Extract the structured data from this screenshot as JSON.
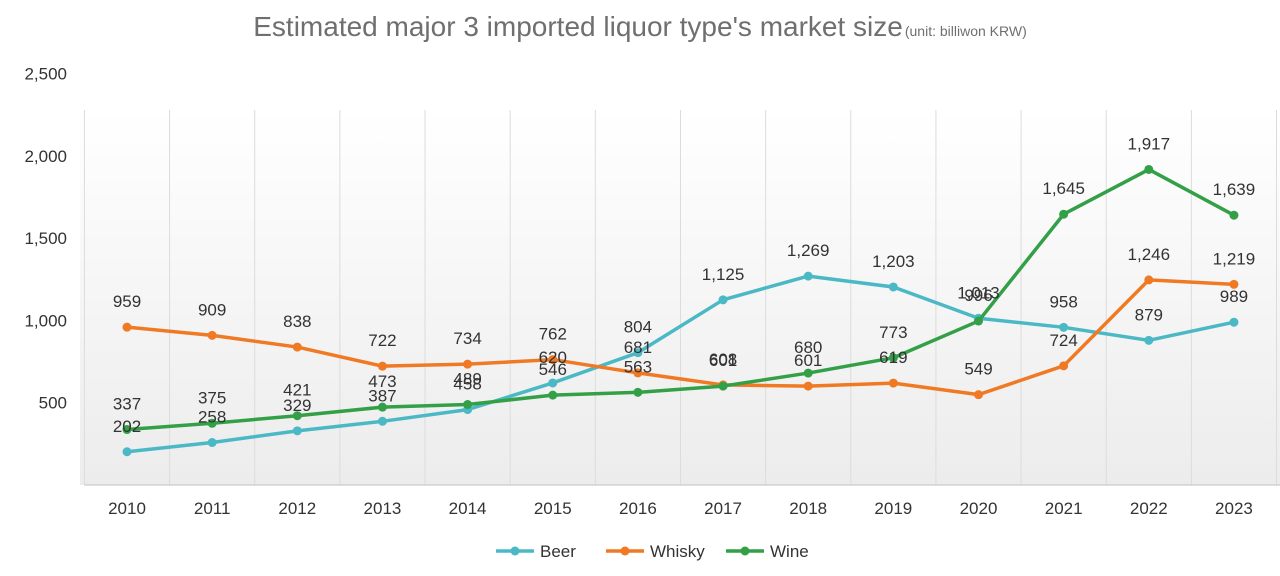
{
  "chart_data": {
    "type": "line",
    "title": "Estimated major 3 imported liquor type's market size",
    "unit_note": "(unit:  billiwon  KRW)",
    "xlabel": "",
    "ylabel": "",
    "categories": [
      "2010",
      "2011",
      "2012",
      "2013",
      "2014",
      "2015",
      "2016",
      "2017",
      "2018",
      "2019",
      "2020",
      "2021",
      "2022",
      "2023"
    ],
    "ylim": [
      0,
      2500
    ],
    "yticks": [
      500,
      1000,
      1500,
      2000,
      2500
    ],
    "ytick_labels": [
      "500",
      "1,000",
      "1,500",
      "2,000",
      "2,500"
    ],
    "grid": "vertical",
    "legend_position": "bottom",
    "series": [
      {
        "name": "Beer",
        "color": "#4bb8c5",
        "values": [
          202,
          258,
          329,
          387,
          458,
          620,
          804,
          1125,
          1269,
          1203,
          1013,
          958,
          879,
          989
        ],
        "labels": [
          "202",
          "258",
          "329",
          "387",
          "458",
          "620",
          "804",
          "1,125",
          "1,269",
          "1,203",
          "1,013",
          "958",
          "879",
          "989"
        ]
      },
      {
        "name": "Whisky",
        "color": "#f07a24",
        "values": [
          959,
          909,
          838,
          722,
          734,
          762,
          681,
          608,
          601,
          619,
          549,
          724,
          1246,
          1219
        ],
        "labels": [
          "959",
          "909",
          "838",
          "722",
          "734",
          "762",
          "681",
          "608",
          "601",
          "619",
          "549",
          "724",
          "1,246",
          "1,219"
        ]
      },
      {
        "name": "Wine",
        "color": "#33a047",
        "values": [
          337,
          375,
          421,
          473,
          489,
          546,
          563,
          601,
          680,
          773,
          996,
          1645,
          1917,
          1639
        ],
        "labels": [
          "337",
          "375",
          "421",
          "473",
          "489",
          "546",
          "563",
          "601",
          "680",
          "773",
          "996",
          "1,645",
          "1,917",
          "1,639"
        ]
      }
    ]
  }
}
